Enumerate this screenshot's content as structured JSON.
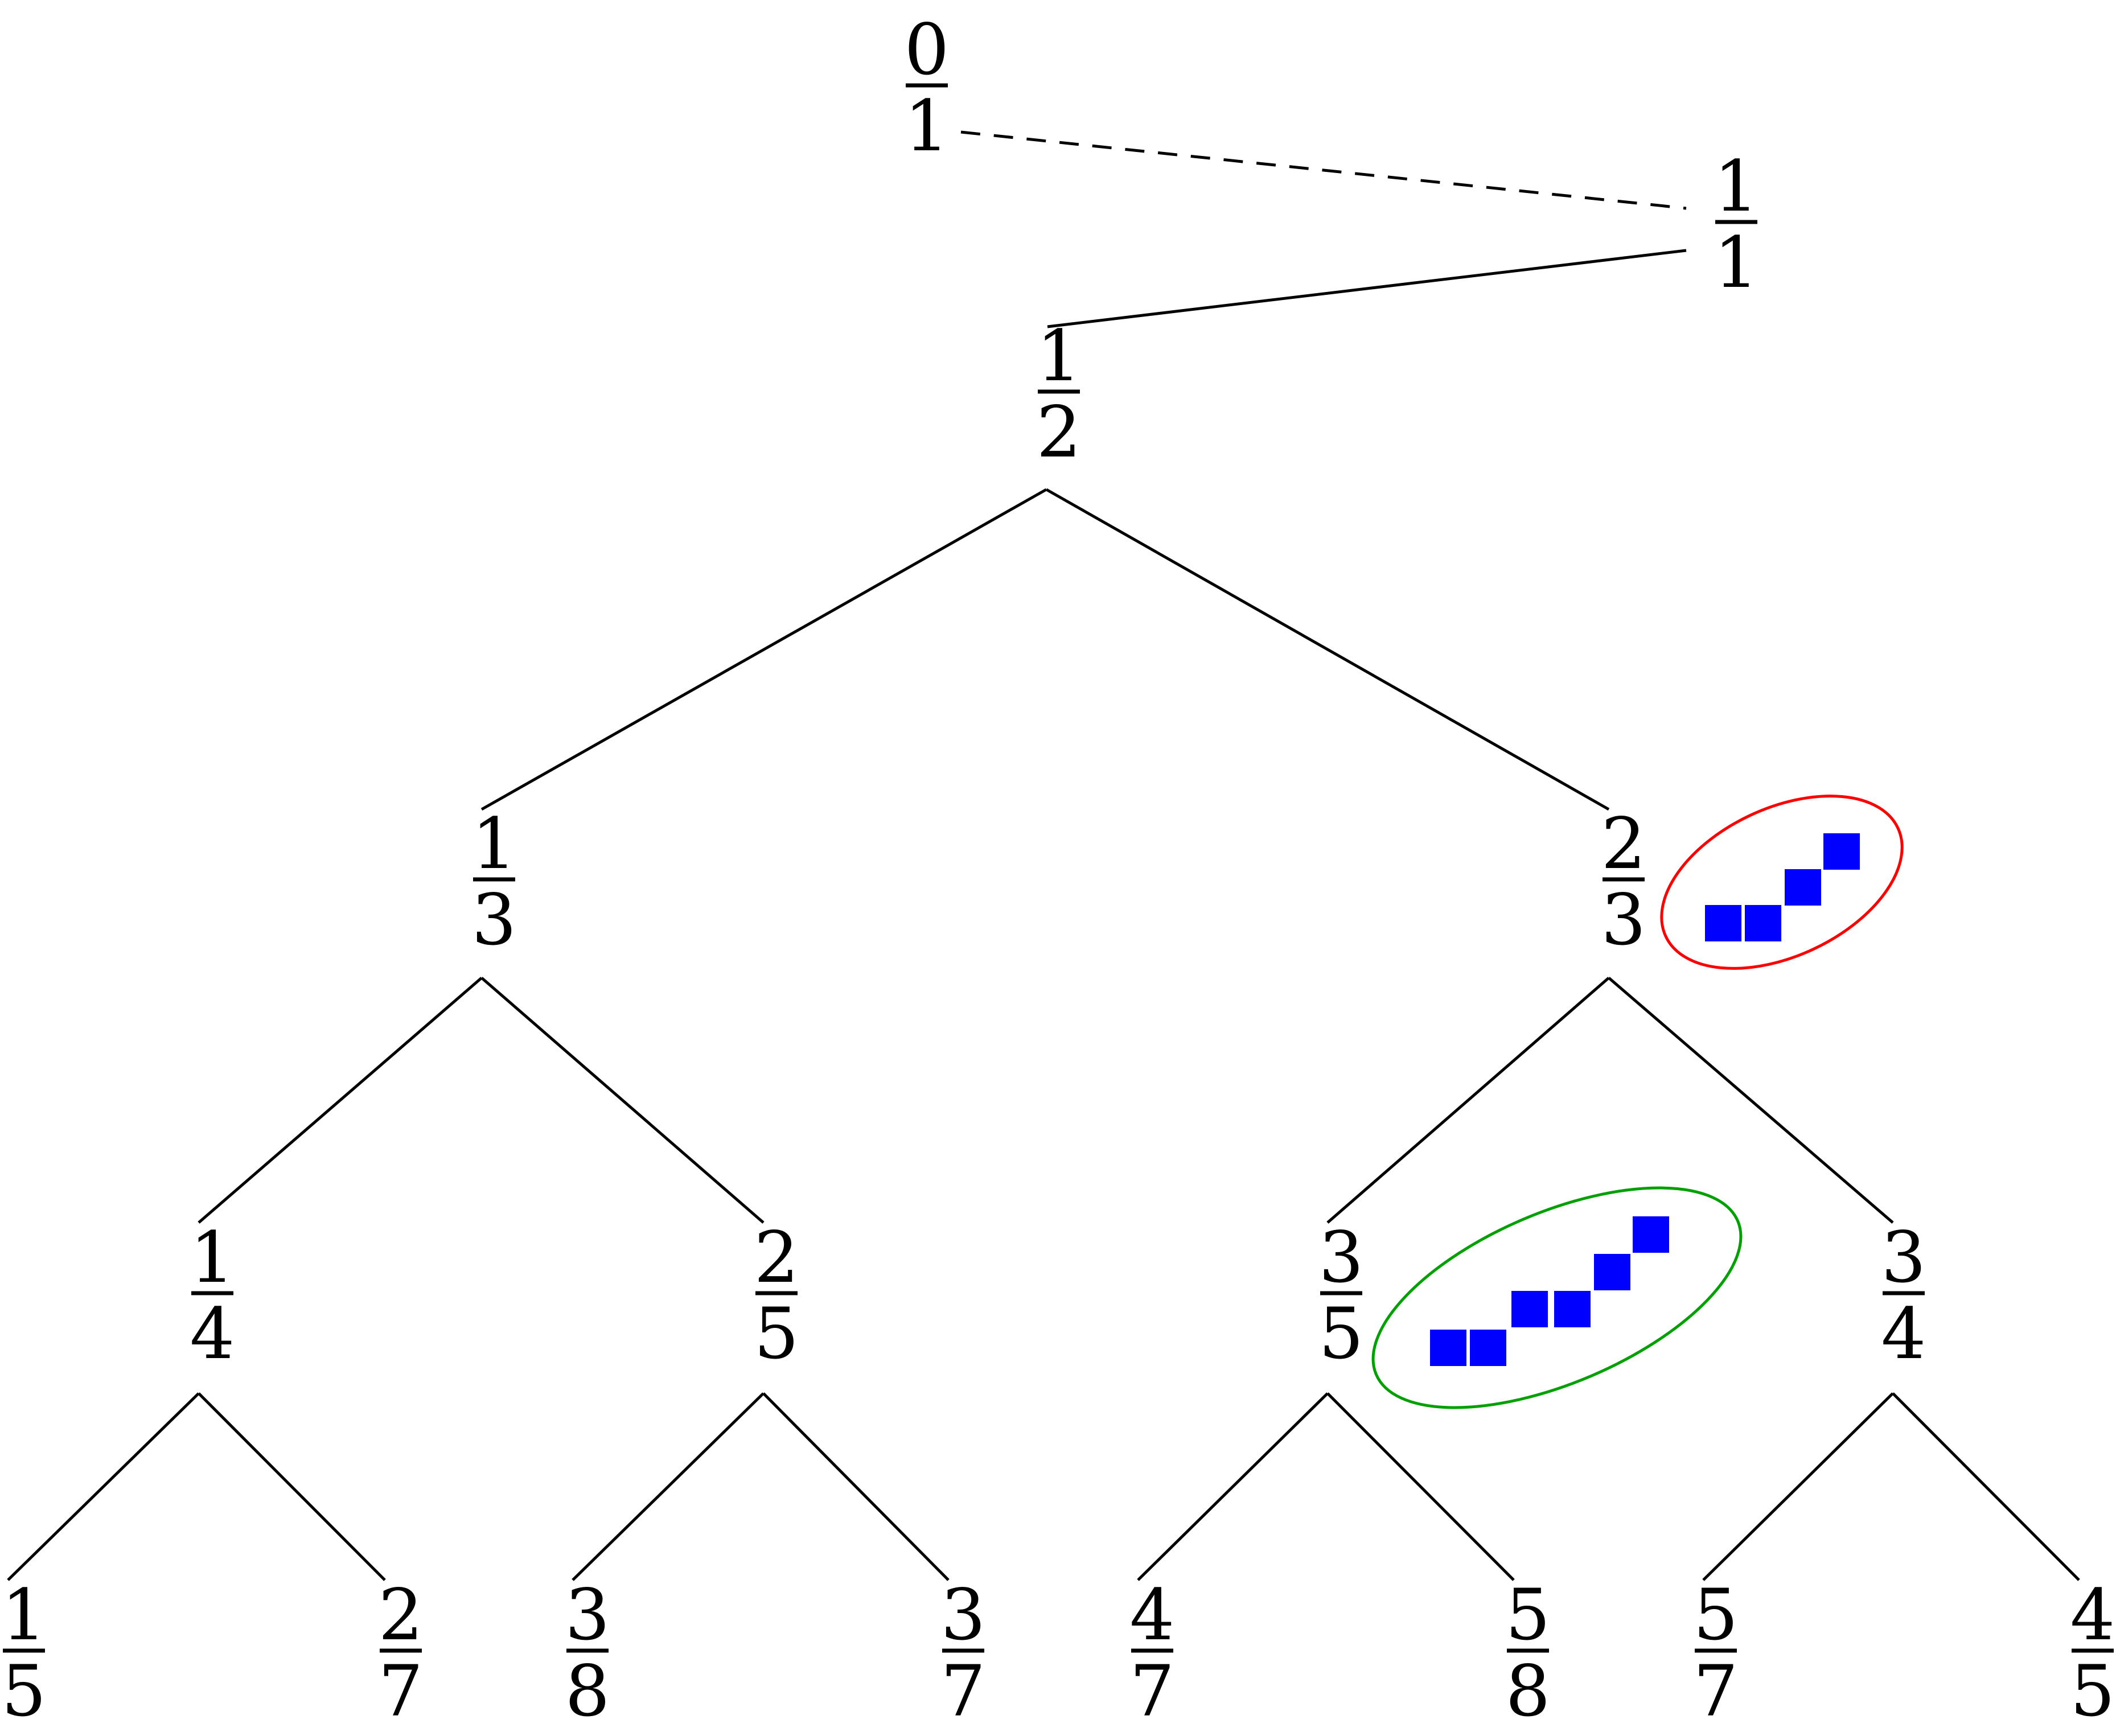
{
  "tree": {
    "nodes": [
      {
        "id": "n0_1",
        "num": "0",
        "den": "1"
      },
      {
        "id": "n1_1",
        "num": "1",
        "den": "1"
      },
      {
        "id": "n1_2",
        "num": "1",
        "den": "2"
      },
      {
        "id": "n1_3",
        "num": "1",
        "den": "3"
      },
      {
        "id": "n2_3",
        "num": "2",
        "den": "3"
      },
      {
        "id": "n1_4",
        "num": "1",
        "den": "4"
      },
      {
        "id": "n2_5",
        "num": "2",
        "den": "5"
      },
      {
        "id": "n3_5",
        "num": "3",
        "den": "5"
      },
      {
        "id": "n3_4",
        "num": "3",
        "den": "4"
      },
      {
        "id": "n1_5",
        "num": "1",
        "den": "5"
      },
      {
        "id": "n2_7",
        "num": "2",
        "den": "7"
      },
      {
        "id": "n3_8",
        "num": "3",
        "den": "8"
      },
      {
        "id": "n3_7",
        "num": "3",
        "den": "7"
      },
      {
        "id": "n4_7",
        "num": "4",
        "den": "7"
      },
      {
        "id": "n5_8",
        "num": "5",
        "den": "8"
      },
      {
        "id": "n5_7",
        "num": "5",
        "den": "7"
      },
      {
        "id": "n4_5",
        "num": "4",
        "den": "5"
      }
    ],
    "edges": [
      {
        "from": "n0_1",
        "to": "n1_1",
        "style": "dashed"
      },
      {
        "from": "n1_1",
        "to": "n1_2",
        "style": "solid"
      },
      {
        "from": "n1_2",
        "to": "n1_3",
        "style": "solid"
      },
      {
        "from": "n1_2",
        "to": "n2_3",
        "style": "solid"
      },
      {
        "from": "n1_3",
        "to": "n1_4",
        "style": "solid"
      },
      {
        "from": "n1_3",
        "to": "n2_5",
        "style": "solid"
      },
      {
        "from": "n2_3",
        "to": "n3_5",
        "style": "solid"
      },
      {
        "from": "n2_3",
        "to": "n3_4",
        "style": "solid"
      },
      {
        "from": "n1_4",
        "to": "n1_5",
        "style": "solid"
      },
      {
        "from": "n1_4",
        "to": "n2_7",
        "style": "solid"
      },
      {
        "from": "n2_5",
        "to": "n3_8",
        "style": "solid"
      },
      {
        "from": "n2_5",
        "to": "n3_7",
        "style": "solid"
      },
      {
        "from": "n3_5",
        "to": "n4_7",
        "style": "solid"
      },
      {
        "from": "n3_5",
        "to": "n5_8",
        "style": "solid"
      },
      {
        "from": "n3_4",
        "to": "n5_7",
        "style": "solid"
      },
      {
        "from": "n3_4",
        "to": "n4_5",
        "style": "solid"
      }
    ]
  },
  "highlights": [
    {
      "attached_to": "n2_3",
      "ellipse_color": "#ff0000",
      "square_color": "#0000ff",
      "squares": 4
    },
    {
      "attached_to": "n3_5",
      "ellipse_color": "#00a000",
      "square_color": "#0000ff",
      "squares": 6
    }
  ],
  "colors": {
    "line": "#000000",
    "square": "#0000ff",
    "red_ring": "#ff0000",
    "green_ring": "#00a000"
  }
}
